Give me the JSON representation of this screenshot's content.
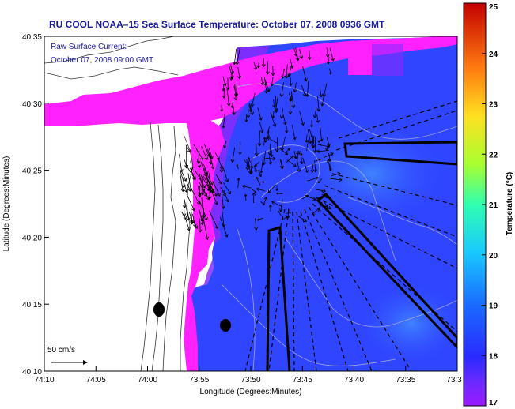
{
  "title": "RU COOL  NOAA–15  Sea Surface Temperature:  October 07, 2008 0936 GMT",
  "annotation": {
    "line1": "Raw Surface Current:",
    "line2": "October 07, 2008 09:00 GMT"
  },
  "scale_label": "50 cm/s",
  "x_axis": {
    "label": "Longitude (Degrees:Minutes)",
    "ticks": [
      "74:10",
      "74:05",
      "74:00",
      "73:55",
      "73:50",
      "73:45",
      "73:40",
      "73:35",
      "73:3"
    ]
  },
  "y_axis": {
    "label": "Latitude (Degrees:Minutes)",
    "ticks": [
      "40:35",
      "40:30",
      "40:25",
      "40:20",
      "40:15",
      "40:10"
    ]
  },
  "colorbar": {
    "label": "Temperature (°C)",
    "min": 17,
    "max": 25,
    "ticks": [
      "25",
      "24",
      "23",
      "22",
      "21",
      "20",
      "19",
      "18",
      "17"
    ]
  },
  "colors": {
    "land": "#ffffff",
    "magenta": "#ff22ff",
    "purple": "#8a2aff",
    "water_blue": "#2f45ff",
    "water_light": "#3a6bff",
    "title": "#1a1aa0"
  }
}
